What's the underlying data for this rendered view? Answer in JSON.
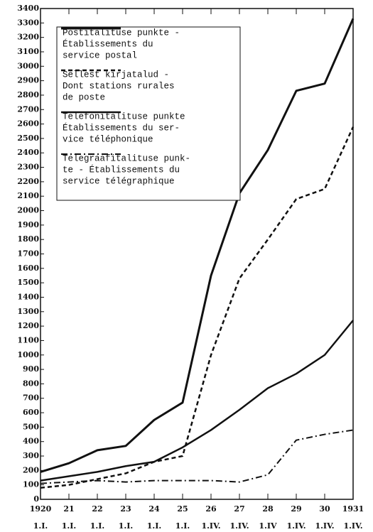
{
  "chart_data": {
    "type": "line",
    "categories": [
      "1920",
      "21",
      "22",
      "23",
      "24",
      "25",
      "26",
      "27",
      "28",
      "29",
      "30",
      "1931"
    ],
    "sublabels": [
      "1.I.",
      "1.I.",
      "1.I.",
      "1.I.",
      "1.I.",
      "1.I.",
      "1.IV.",
      "1.IV.",
      "1.IV",
      "1.IV.",
      "1.IV.",
      "1.IV."
    ],
    "ylim": [
      0,
      3400
    ],
    "yticks": [
      0,
      100,
      200,
      300,
      400,
      500,
      600,
      700,
      800,
      900,
      1000,
      1100,
      1200,
      1300,
      1400,
      1500,
      1600,
      1700,
      1800,
      1900,
      2000,
      2100,
      2200,
      2300,
      2400,
      2500,
      2600,
      2700,
      2800,
      2900,
      3000,
      3100,
      3200,
      3300,
      3400
    ],
    "series": [
      {
        "name": [
          "Postitalituse punkte -",
          "Établissements du",
          "service postal"
        ],
        "color": "#111111",
        "style": "solid",
        "values": [
          190,
          250,
          340,
          370,
          550,
          670,
          1550,
          2120,
          2420,
          2830,
          2880,
          3330
        ]
      },
      {
        "name": [
          "Sellest kirjatalud -",
          "Dont stations rurales",
          "de poste"
        ],
        "color": "#111111",
        "style": "dashed",
        "values": [
          80,
          100,
          140,
          180,
          260,
          300,
          1000,
          1530,
          1800,
          2080,
          2150,
          2580
        ]
      },
      {
        "name": [
          "Telefonitalituse punkte",
          "Établissements du ser-",
          "vice téléphonique"
        ],
        "color": "#111111",
        "style": "double",
        "values": [
          130,
          160,
          190,
          230,
          260,
          360,
          480,
          620,
          770,
          870,
          1000,
          1240
        ]
      },
      {
        "name": [
          "Telegraafitalituse punk-",
          "te - Établissements du",
          "service télégraphique"
        ],
        "color": "#111111",
        "style": "dashdot",
        "values": [
          110,
          120,
          130,
          120,
          130,
          130,
          130,
          120,
          170,
          410,
          450,
          480
        ]
      }
    ]
  }
}
